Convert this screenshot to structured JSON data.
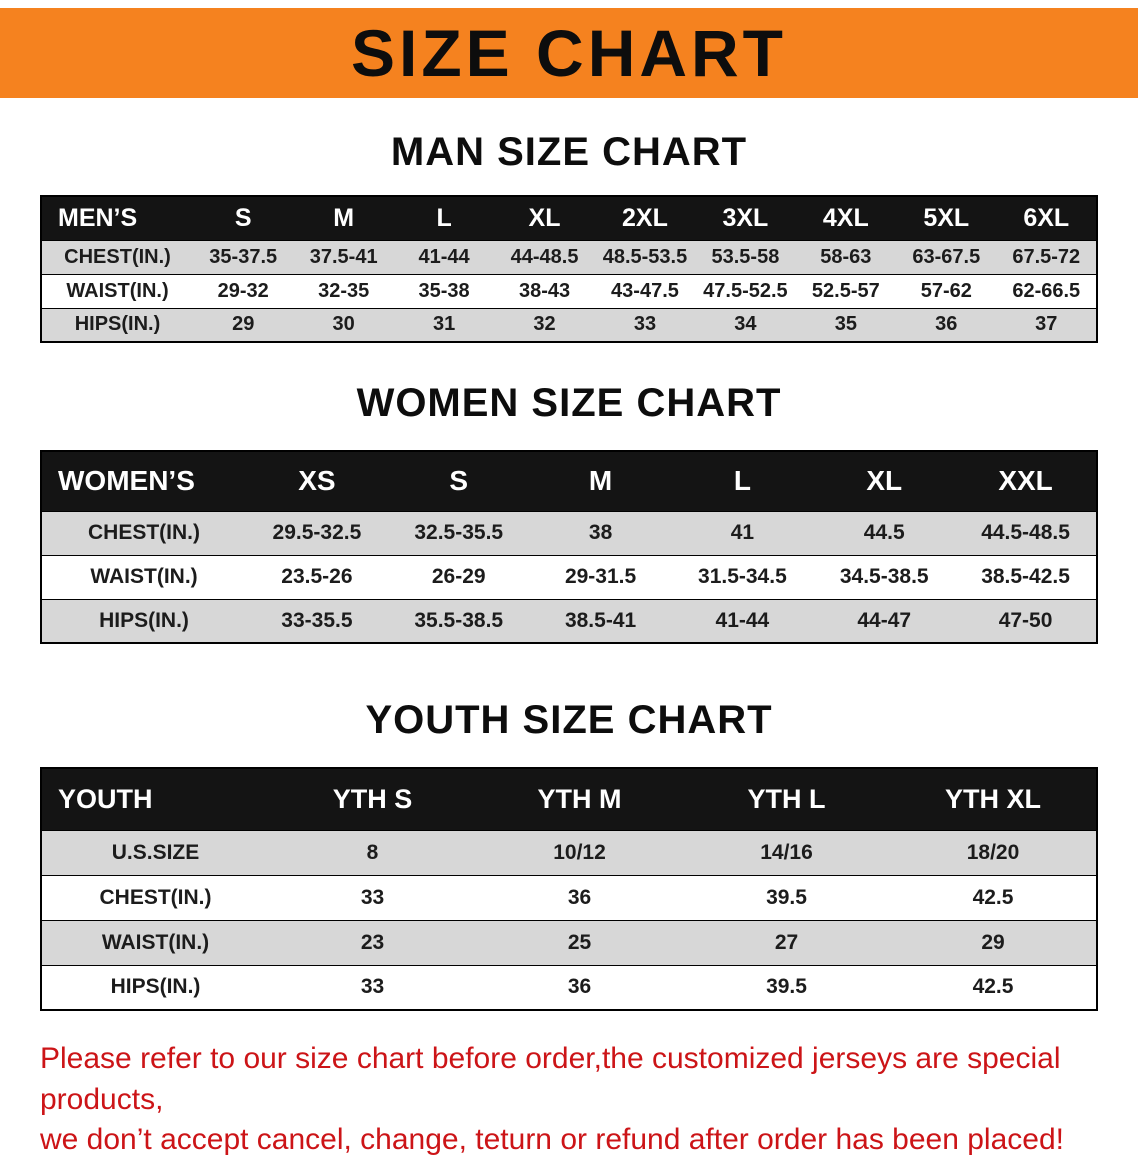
{
  "banner": {
    "title": "SIZE CHART"
  },
  "men": {
    "heading": "MAN SIZE CHART",
    "table": {
      "header": [
        "MEN’S",
        "S",
        "M",
        "L",
        "XL",
        "2XL",
        "3XL",
        "4XL",
        "5XL",
        "6XL"
      ],
      "rows": [
        [
          "CHEST(IN.)",
          "35-37.5",
          "37.5-41",
          "41-44",
          "44-48.5",
          "48.5-53.5",
          "53.5-58",
          "58-63",
          "63-67.5",
          "67.5-72"
        ],
        [
          "WAIST(IN.)",
          "29-32",
          "32-35",
          "35-38",
          "38-43",
          "43-47.5",
          "47.5-52.5",
          "52.5-57",
          "57-62",
          "62-66.5"
        ],
        [
          "HIPS(IN.)",
          "29",
          "30",
          "31",
          "32",
          "33",
          "34",
          "35",
          "36",
          "37"
        ]
      ]
    }
  },
  "women": {
    "heading": "WOMEN SIZE CHART",
    "table": {
      "header": [
        "WOMEN’S",
        "XS",
        "S",
        "M",
        "L",
        "XL",
        "XXL"
      ],
      "rows": [
        [
          "CHEST(IN.)",
          "29.5-32.5",
          "32.5-35.5",
          "38",
          "41",
          "44.5",
          "44.5-48.5"
        ],
        [
          "WAIST(IN.)",
          "23.5-26",
          "26-29",
          "29-31.5",
          "31.5-34.5",
          "34.5-38.5",
          "38.5-42.5"
        ],
        [
          "HIPS(IN.)",
          "33-35.5",
          "35.5-38.5",
          "38.5-41",
          "41-44",
          "44-47",
          "47-50"
        ]
      ]
    }
  },
  "youth": {
    "heading": "YOUTH SIZE CHART",
    "table": {
      "header": [
        "YOUTH",
        "YTH S",
        "YTH M",
        "YTH L",
        "YTH XL"
      ],
      "rows": [
        [
          "U.S.SIZE",
          "8",
          "10/12",
          "14/16",
          "18/20"
        ],
        [
          "CHEST(IN.)",
          "33",
          "36",
          "39.5",
          "42.5"
        ],
        [
          "WAIST(IN.)",
          "23",
          "25",
          "27",
          "29"
        ],
        [
          "HIPS(IN.)",
          "33",
          "36",
          "39.5",
          "42.5"
        ]
      ]
    }
  },
  "disclaimer": {
    "line1": "Please refer to our size chart before order,the customized jerseys are special products,",
    "line2": "we don’t accept cancel, change, teturn or refund after order has been placed!"
  },
  "colors": {
    "banner_bg": "#f5821f",
    "table_header_bg": "#141414",
    "row_stripe": "#d7d7d7",
    "disclaimer_red": "#cc1417"
  }
}
